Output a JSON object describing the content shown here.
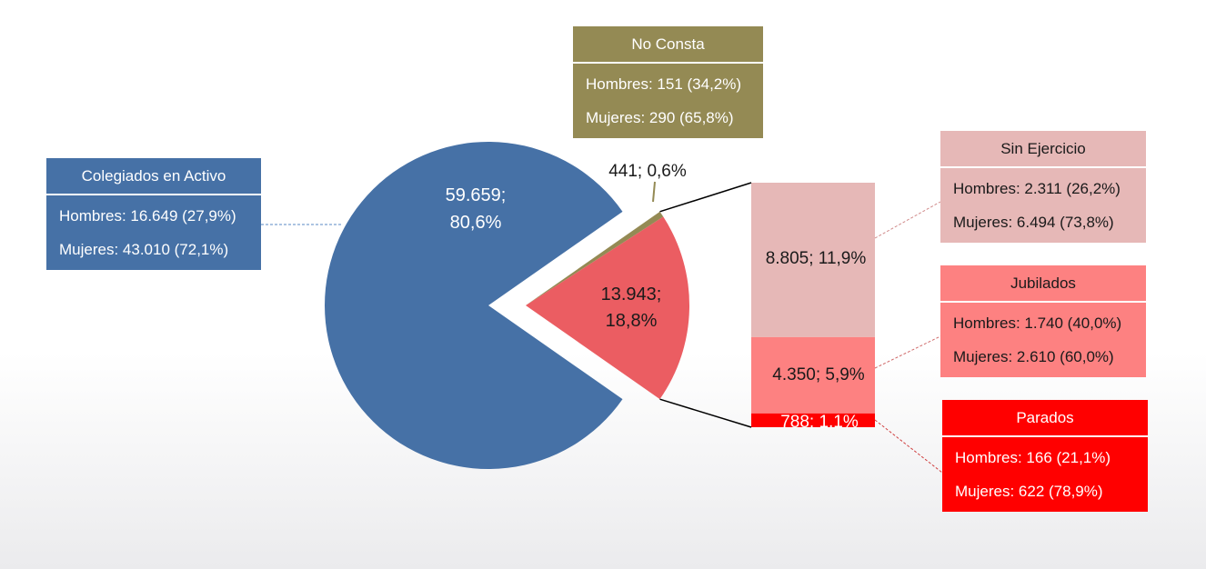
{
  "chart_data": {
    "type": "pie",
    "series": [
      {
        "label": "59.659;",
        "label2": "80,6%",
        "value": 59659,
        "percent": 80.6,
        "color": "#4671a6"
      },
      {
        "label": "441; 0,6%",
        "value": 441,
        "percent": 0.6,
        "color": "#948a54"
      },
      {
        "label": "13.943;",
        "label2": "18,8%",
        "value": 13943,
        "percent": 18.8,
        "color": "#eb5d62"
      }
    ],
    "breakdown": {
      "type": "stacked_bar",
      "segments": [
        {
          "label": "8.805; 11,9%",
          "value": 8805,
          "percent": 11.9,
          "color": "#e6b8b7"
        },
        {
          "label": "4.350; 5,9%",
          "value": 4350,
          "percent": 5.9,
          "color": "#fd8181"
        },
        {
          "label": "788; 1,1%",
          "value": 788,
          "percent": 1.1,
          "color": "#ff0000"
        }
      ]
    },
    "callouts": [
      {
        "title": "Colegiados en Activo",
        "lines": [
          "Hombres: 16.649 (27,9%)",
          "Mujeres: 43.010 (72,1%)"
        ],
        "color": "#4671a6"
      },
      {
        "title": "No Consta",
        "lines": [
          "Hombres: 151 (34,2%)",
          "Mujeres: 290 (65,8%)"
        ],
        "color": "#948a54"
      },
      {
        "title": "Sin Ejercicio",
        "lines": [
          "Hombres: 2.311 (26,2%)",
          "Mujeres: 6.494 (73,8%)"
        ],
        "color": "#e6b8b7"
      },
      {
        "title": "Jubilados",
        "lines": [
          "Hombres: 1.740 (40,0%)",
          "Mujeres: 2.610 (60,0%)"
        ],
        "color": "#fd8181"
      },
      {
        "title": "Parados",
        "lines": [
          "Hombres: 166 (21,1%)",
          "Mujeres: 622 (78,9%)"
        ],
        "color": "#ff0000"
      }
    ]
  }
}
